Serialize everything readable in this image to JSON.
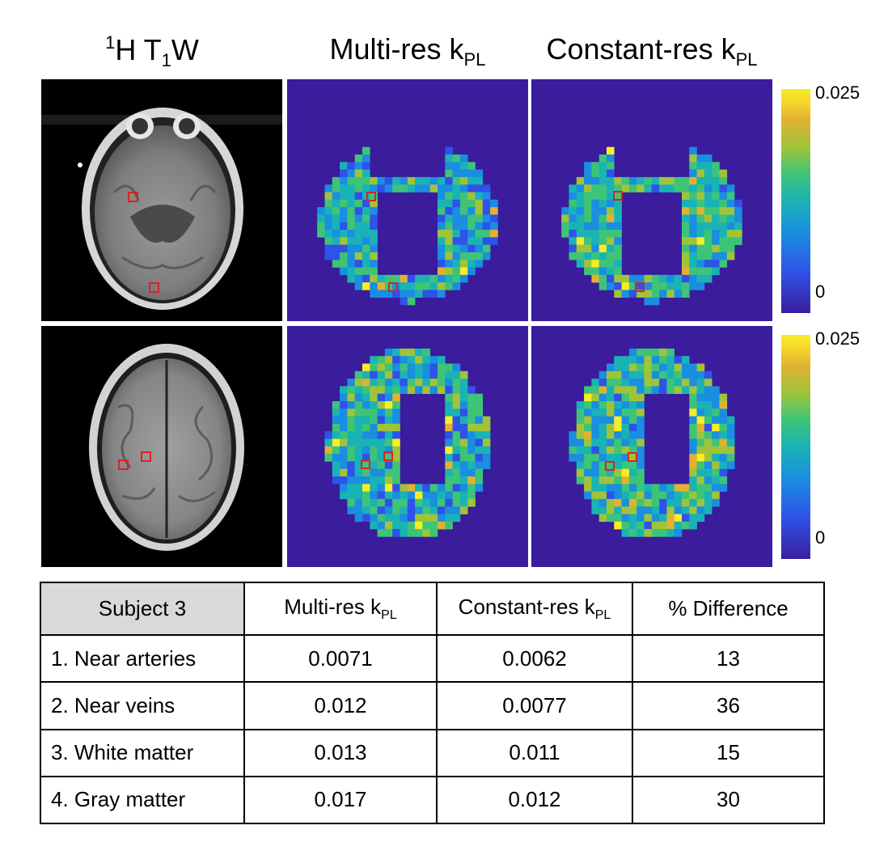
{
  "titles": {
    "col1": {
      "sup": "1",
      "main": "H T",
      "sub": "1",
      "tail": "W"
    },
    "col2": {
      "main": "Multi-res k",
      "sub": "PL"
    },
    "col3": {
      "main": "Constant-res k",
      "sub": "PL"
    }
  },
  "colorbars": [
    {
      "max_label": "0.025",
      "min_label": "0"
    },
    {
      "max_label": "0.025",
      "min_label": "0"
    }
  ],
  "colormap": [
    "#3b1e9e",
    "#2f52e8",
    "#1a8ee0",
    "#1ab3b5",
    "#3ec477",
    "#9fc43a",
    "#e0b232",
    "#f7ee26"
  ],
  "roi_box_color": "#e02020",
  "table": {
    "headers": {
      "subject": "Subject 3",
      "multi": {
        "main": "Multi-res k",
        "sub": "PL"
      },
      "constant": {
        "main": "Constant-res k",
        "sub": "PL"
      },
      "diff": "% Difference"
    },
    "rows": [
      {
        "label": "1. Near arteries",
        "multi": "0.0071",
        "constant": "0.0062",
        "diff": "13"
      },
      {
        "label": "2. Near veins",
        "multi": "0.012",
        "constant": "0.0077",
        "diff": "36"
      },
      {
        "label": "3. White matter",
        "multi": "0.013",
        "constant": "0.011",
        "diff": "15"
      },
      {
        "label": "4. Gray matter",
        "multi": "0.017",
        "constant": "0.012",
        "diff": "30"
      }
    ]
  }
}
